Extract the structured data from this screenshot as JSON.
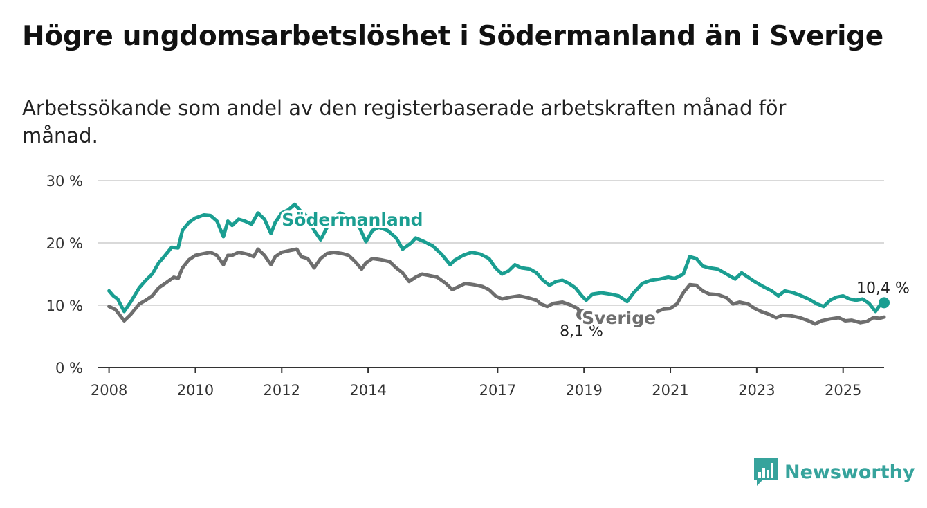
{
  "title": "Högre ungdomsarbetslöshet i Södermanland än i Sverige",
  "subtitle": "Arbetssökande som andel av den registerbaserade arbetskraften månad för månad.",
  "brand": {
    "name": "Newsworthy",
    "icon": "newsworthy-logo-icon",
    "color": "#36a39c"
  },
  "chart_data": {
    "type": "line",
    "title": "Högre ungdomsarbetslöshet i Södermanland än i Sverige",
    "subtitle": "Arbetssökande som andel av den registerbaserade arbetskraften månad för månad.",
    "xlabel": "",
    "ylabel": "",
    "x_ticks": [
      2008,
      2010,
      2012,
      2014,
      2017,
      2019,
      2021,
      2023,
      2025
    ],
    "xlim": [
      2007.75,
      2025.95
    ],
    "ylim": [
      0,
      30
    ],
    "y_ticks": [
      0,
      10,
      20,
      30
    ],
    "y_tick_labels": [
      "0 %",
      "10 %",
      "20 %",
      "30 %"
    ],
    "grid": true,
    "legend": "inline labels",
    "series": [
      {
        "name": "Södermanland",
        "color": "#1a9e91",
        "end_label": "10,4 %",
        "points": [
          [
            2008.0,
            12.3
          ],
          [
            2008.1,
            11.5
          ],
          [
            2008.2,
            11.0
          ],
          [
            2008.35,
            9.0
          ],
          [
            2008.5,
            10.5
          ],
          [
            2008.7,
            12.8
          ],
          [
            2008.85,
            14.0
          ],
          [
            2009.0,
            15.0
          ],
          [
            2009.15,
            16.8
          ],
          [
            2009.3,
            18.0
          ],
          [
            2009.45,
            19.3
          ],
          [
            2009.6,
            19.2
          ],
          [
            2009.7,
            22.0
          ],
          [
            2009.85,
            23.3
          ],
          [
            2010.0,
            24.0
          ],
          [
            2010.2,
            24.5
          ],
          [
            2010.35,
            24.4
          ],
          [
            2010.5,
            23.5
          ],
          [
            2010.65,
            21.0
          ],
          [
            2010.75,
            23.5
          ],
          [
            2010.85,
            22.8
          ],
          [
            2011.0,
            23.8
          ],
          [
            2011.15,
            23.5
          ],
          [
            2011.3,
            23.0
          ],
          [
            2011.45,
            24.8
          ],
          [
            2011.6,
            23.8
          ],
          [
            2011.75,
            21.5
          ],
          [
            2011.85,
            23.3
          ],
          [
            2012.0,
            24.8
          ],
          [
            2012.15,
            25.3
          ],
          [
            2012.3,
            26.2
          ],
          [
            2012.45,
            25.0
          ],
          [
            2012.6,
            24.2
          ],
          [
            2012.75,
            22.0
          ],
          [
            2012.9,
            20.5
          ],
          [
            2013.05,
            22.5
          ],
          [
            2013.2,
            24.0
          ],
          [
            2013.35,
            24.8
          ],
          [
            2013.5,
            24.3
          ],
          [
            2013.65,
            23.8
          ],
          [
            2013.8,
            22.5
          ],
          [
            2013.95,
            20.2
          ],
          [
            2014.1,
            22.0
          ],
          [
            2014.25,
            22.5
          ],
          [
            2014.45,
            22.0
          ],
          [
            2014.65,
            20.8
          ],
          [
            2014.8,
            19.0
          ],
          [
            2015.0,
            20.0
          ],
          [
            2015.1,
            20.8
          ],
          [
            2015.3,
            20.2
          ],
          [
            2015.5,
            19.5
          ],
          [
            2015.7,
            18.2
          ],
          [
            2015.9,
            16.5
          ],
          [
            2016.0,
            17.2
          ],
          [
            2016.2,
            18.0
          ],
          [
            2016.4,
            18.5
          ],
          [
            2016.6,
            18.2
          ],
          [
            2016.8,
            17.5
          ],
          [
            2016.95,
            16.0
          ],
          [
            2017.1,
            15.0
          ],
          [
            2017.25,
            15.5
          ],
          [
            2017.4,
            16.5
          ],
          [
            2017.55,
            16.0
          ],
          [
            2017.75,
            15.8
          ],
          [
            2017.9,
            15.2
          ],
          [
            2018.05,
            14.0
          ],
          [
            2018.2,
            13.2
          ],
          [
            2018.35,
            13.8
          ],
          [
            2018.5,
            14.0
          ],
          [
            2018.65,
            13.5
          ],
          [
            2018.8,
            12.8
          ],
          [
            2018.95,
            11.5
          ],
          [
            2019.05,
            10.8
          ],
          [
            2019.2,
            11.8
          ],
          [
            2019.4,
            12.0
          ],
          [
            2019.6,
            11.8
          ],
          [
            2019.8,
            11.5
          ],
          [
            2020.0,
            10.6
          ],
          [
            2020.15,
            12.0
          ],
          [
            2020.35,
            13.5
          ],
          [
            2020.55,
            14.0
          ],
          [
            2020.75,
            14.2
          ],
          [
            2020.95,
            14.5
          ],
          [
            2021.1,
            14.3
          ],
          [
            2021.3,
            15.0
          ],
          [
            2021.45,
            17.8
          ],
          [
            2021.6,
            17.5
          ],
          [
            2021.75,
            16.3
          ],
          [
            2021.9,
            16.0
          ],
          [
            2022.1,
            15.8
          ],
          [
            2022.3,
            15.0
          ],
          [
            2022.5,
            14.2
          ],
          [
            2022.65,
            15.2
          ],
          [
            2022.8,
            14.5
          ],
          [
            2022.95,
            13.8
          ],
          [
            2023.15,
            13.0
          ],
          [
            2023.35,
            12.3
          ],
          [
            2023.5,
            11.5
          ],
          [
            2023.65,
            12.3
          ],
          [
            2023.85,
            12.0
          ],
          [
            2024.0,
            11.6
          ],
          [
            2024.2,
            11.0
          ],
          [
            2024.4,
            10.2
          ],
          [
            2024.55,
            9.8
          ],
          [
            2024.7,
            10.8
          ],
          [
            2024.85,
            11.3
          ],
          [
            2025.0,
            11.5
          ],
          [
            2025.15,
            11.0
          ],
          [
            2025.3,
            10.8
          ],
          [
            2025.45,
            11.0
          ],
          [
            2025.6,
            10.3
          ],
          [
            2025.75,
            9.0
          ],
          [
            2025.85,
            10.0
          ],
          [
            2025.95,
            10.4
          ]
        ]
      },
      {
        "name": "Sverige",
        "color": "#6e6e6e",
        "end_label": "8,1 %",
        "points": [
          [
            2008.0,
            9.8
          ],
          [
            2008.15,
            9.3
          ],
          [
            2008.35,
            7.5
          ],
          [
            2008.5,
            8.5
          ],
          [
            2008.7,
            10.2
          ],
          [
            2008.85,
            10.8
          ],
          [
            2009.0,
            11.5
          ],
          [
            2009.15,
            12.8
          ],
          [
            2009.3,
            13.5
          ],
          [
            2009.5,
            14.5
          ],
          [
            2009.6,
            14.3
          ],
          [
            2009.7,
            16.0
          ],
          [
            2009.85,
            17.3
          ],
          [
            2010.0,
            18.0
          ],
          [
            2010.2,
            18.3
          ],
          [
            2010.35,
            18.5
          ],
          [
            2010.5,
            18.0
          ],
          [
            2010.65,
            16.5
          ],
          [
            2010.75,
            18.0
          ],
          [
            2010.85,
            18.0
          ],
          [
            2011.0,
            18.5
          ],
          [
            2011.2,
            18.2
          ],
          [
            2011.35,
            17.8
          ],
          [
            2011.45,
            19.0
          ],
          [
            2011.6,
            18.0
          ],
          [
            2011.75,
            16.5
          ],
          [
            2011.85,
            17.8
          ],
          [
            2012.0,
            18.5
          ],
          [
            2012.2,
            18.8
          ],
          [
            2012.35,
            19.0
          ],
          [
            2012.45,
            17.8
          ],
          [
            2012.6,
            17.5
          ],
          [
            2012.75,
            16.0
          ],
          [
            2012.9,
            17.5
          ],
          [
            2013.05,
            18.3
          ],
          [
            2013.2,
            18.5
          ],
          [
            2013.4,
            18.3
          ],
          [
            2013.55,
            18.0
          ],
          [
            2013.7,
            17.0
          ],
          [
            2013.85,
            15.8
          ],
          [
            2013.95,
            16.8
          ],
          [
            2014.1,
            17.5
          ],
          [
            2014.3,
            17.3
          ],
          [
            2014.5,
            17.0
          ],
          [
            2014.65,
            16.0
          ],
          [
            2014.8,
            15.2
          ],
          [
            2014.95,
            13.8
          ],
          [
            2015.1,
            14.5
          ],
          [
            2015.25,
            15.0
          ],
          [
            2015.4,
            14.8
          ],
          [
            2015.6,
            14.5
          ],
          [
            2015.8,
            13.5
          ],
          [
            2015.95,
            12.5
          ],
          [
            2016.1,
            13.0
          ],
          [
            2016.25,
            13.5
          ],
          [
            2016.45,
            13.3
          ],
          [
            2016.65,
            13.0
          ],
          [
            2016.8,
            12.5
          ],
          [
            2016.95,
            11.5
          ],
          [
            2017.1,
            11.0
          ],
          [
            2017.3,
            11.3
          ],
          [
            2017.5,
            11.5
          ],
          [
            2017.7,
            11.2
          ],
          [
            2017.9,
            10.8
          ],
          [
            2018.0,
            10.2
          ],
          [
            2018.15,
            9.8
          ],
          [
            2018.3,
            10.3
          ],
          [
            2018.5,
            10.5
          ],
          [
            2018.7,
            10.0
          ],
          [
            2018.85,
            9.5
          ],
          [
            2018.95,
            8.5
          ]
        ]
      },
      {
        "name": "Sverige",
        "color": "#6e6e6e",
        "points": [
          [
            2020.7,
            9.0
          ],
          [
            2020.85,
            9.4
          ],
          [
            2021.0,
            9.5
          ],
          [
            2021.15,
            10.2
          ],
          [
            2021.3,
            12.0
          ],
          [
            2021.45,
            13.3
          ],
          [
            2021.6,
            13.2
          ],
          [
            2021.75,
            12.3
          ],
          [
            2021.9,
            11.8
          ],
          [
            2022.1,
            11.7
          ],
          [
            2022.3,
            11.2
          ],
          [
            2022.45,
            10.2
          ],
          [
            2022.6,
            10.5
          ],
          [
            2022.8,
            10.2
          ],
          [
            2022.95,
            9.5
          ],
          [
            2023.1,
            9.0
          ],
          [
            2023.3,
            8.5
          ],
          [
            2023.45,
            8.0
          ],
          [
            2023.6,
            8.4
          ],
          [
            2023.8,
            8.3
          ],
          [
            2024.0,
            8.0
          ],
          [
            2024.2,
            7.5
          ],
          [
            2024.35,
            7.0
          ],
          [
            2024.5,
            7.5
          ],
          [
            2024.7,
            7.8
          ],
          [
            2024.9,
            8.0
          ],
          [
            2025.05,
            7.5
          ],
          [
            2025.2,
            7.6
          ],
          [
            2025.4,
            7.2
          ],
          [
            2025.55,
            7.4
          ],
          [
            2025.7,
            8.0
          ],
          [
            2025.85,
            7.9
          ],
          [
            2025.95,
            8.1
          ]
        ]
      }
    ]
  }
}
